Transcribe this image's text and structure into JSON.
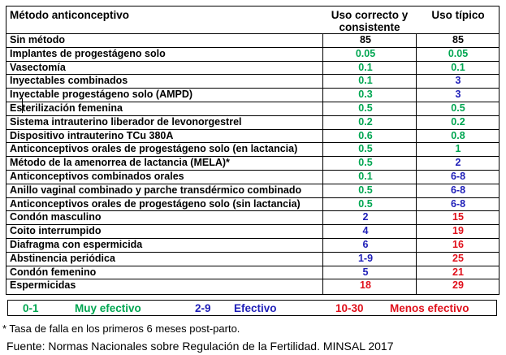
{
  "header": {
    "method": "Método anticonceptivo",
    "correct_use": "Uso correcto y consistente",
    "typical_use": "Uso típico"
  },
  "colors": {
    "green": "#00a651",
    "blue": "#1f1fb8",
    "red": "#e0101b",
    "black": "#000000"
  },
  "rows": [
    {
      "name": "Sin método",
      "correct": "85",
      "typical": "85",
      "c1": "#000000",
      "c2": "#000000"
    },
    {
      "name": "Implantes de progestágeno solo",
      "correct": "0.05",
      "typical": "0.05",
      "c1": "#00a651",
      "c2": "#00a651"
    },
    {
      "name": "Vasectomía",
      "correct": "0.1",
      "typical": "0.1",
      "c1": "#00a651",
      "c2": "#00a651"
    },
    {
      "name": "Inyectables combinados",
      "correct": "0.1",
      "typical": "3",
      "c1": "#00a651",
      "c2": "#1f1fb8"
    },
    {
      "name": "Inyectable progestágeno solo (AMPD)",
      "correct": "0.3",
      "typical": "3",
      "c1": "#00a651",
      "c2": "#1f1fb8"
    },
    {
      "name": "Esterilización femenina",
      "correct": "0.5",
      "typical": "0.5",
      "c1": "#00a651",
      "c2": "#00a651"
    },
    {
      "name": "Sistema intrauterino liberador de levonorgestrel",
      "correct": "0.2",
      "typical": "0.2",
      "c1": "#00a651",
      "c2": "#00a651"
    },
    {
      "name": "Dispositivo intrauterino TCu 380A",
      "correct": "0.6",
      "typical": "0.8",
      "c1": "#00a651",
      "c2": "#00a651"
    },
    {
      "name": "Anticonceptivos orales de progestágeno solo (en lactancia)",
      "correct": "0.5",
      "typical": "1",
      "c1": "#00a651",
      "c2": "#00a651"
    },
    {
      "name": "Método de la amenorrea de lactancia (MELA)*",
      "correct": "0.5",
      "typical": "2",
      "c1": "#00a651",
      "c2": "#1f1fb8"
    },
    {
      "name": "Anticonceptivos combinados orales",
      "correct": "0.1",
      "typical": "6-8",
      "c1": "#00a651",
      "c2": "#1f1fb8"
    },
    {
      "name": "Anillo vaginal combinado y parche transdérmico combinado",
      "correct": "0.5",
      "typical": "6-8",
      "c1": "#00a651",
      "c2": "#1f1fb8"
    },
    {
      "name": "Anticonceptivos orales de progestágeno solo (sin lactancia)",
      "correct": "0.5",
      "typical": "6-8",
      "c1": "#00a651",
      "c2": "#1f1fb8"
    },
    {
      "name": "Condón masculino",
      "correct": "2",
      "typical": "15",
      "c1": "#1f1fb8",
      "c2": "#e0101b"
    },
    {
      "name": "Coito interrumpido",
      "correct": "4",
      "typical": "19",
      "c1": "#1f1fb8",
      "c2": "#e0101b"
    },
    {
      "name": "Diafragma con espermicida",
      "correct": "6",
      "typical": "16",
      "c1": "#1f1fb8",
      "c2": "#e0101b"
    },
    {
      "name": "Abstinencia periódica",
      "correct": "1-9",
      "typical": "25",
      "c1": "#1f1fb8",
      "c2": "#e0101b"
    },
    {
      "name": "Condón femenino",
      "correct": "5",
      "typical": "21",
      "c1": "#1f1fb8",
      "c2": "#e0101b"
    },
    {
      "name": "Espermicidas",
      "correct": "18",
      "typical": "29",
      "c1": "#e0101b",
      "c2": "#e0101b"
    }
  ],
  "legend": [
    {
      "range": "0-1",
      "label": "Muy efectivo",
      "color": "#00a651"
    },
    {
      "range": "2-9",
      "label": "Efectivo",
      "color": "#1f1fb8"
    },
    {
      "range": "10-30",
      "label": "Menos efectivo",
      "color": "#e0101b"
    }
  ],
  "note": "* Tasa de falla en los primeros 6 meses post-parto.",
  "source": "Fuente: Normas Nacionales sobre Regulación de la Fertilidad. MINSAL 2017"
}
